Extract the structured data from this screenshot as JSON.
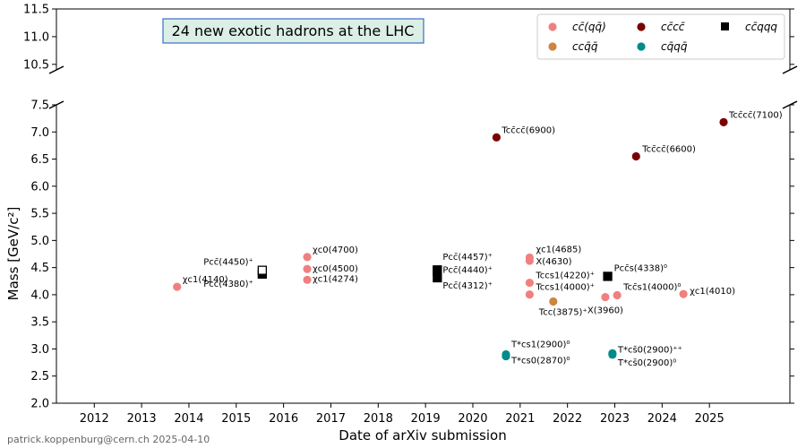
{
  "chart_data": {
    "type": "scatter",
    "title": "24 new exotic hadrons at the LHC",
    "xlabel": "Date of arXiv submission",
    "ylabel": "Mass [GeV/c²]",
    "footer": "patrick.koppenburg@cern.ch 2025-04-10",
    "xlim": [
      2011.2,
      2026.7
    ],
    "upper_ylim": [
      10.4,
      11.5
    ],
    "lower_ylim": [
      2.0,
      7.5
    ],
    "x_ticks": [
      2012,
      2013,
      2014,
      2015,
      2016,
      2017,
      2018,
      2019,
      2020,
      2021,
      2022,
      2023,
      2024,
      2025
    ],
    "upper_y_ticks": [
      "10.5",
      "11.0",
      "11.5"
    ],
    "lower_y_ticks": [
      "2.0",
      "2.5",
      "3.0",
      "3.5",
      "4.0",
      "4.5",
      "5.0",
      "5.5",
      "6.0",
      "6.5",
      "7.0",
      "7.5"
    ],
    "legend_position": "top-right",
    "series": [
      {
        "name": "cc̄(qq̄)",
        "color": "#f08080",
        "marker": "circle",
        "points": [
          {
            "x": 2013.75,
            "y": 4.146,
            "label": "χc1(4140)"
          },
          {
            "x": 2016.5,
            "y": 4.274,
            "label": "χc1(4274)"
          },
          {
            "x": 2016.5,
            "y": 4.474,
            "label": "χc0(4500)"
          },
          {
            "x": 2016.5,
            "y": 4.694,
            "label": "χc0(4700)"
          },
          {
            "x": 2021.2,
            "y": 4.684,
            "label": "χc1(4685)"
          },
          {
            "x": 2021.2,
            "y": 4.626,
            "label": "X(4630)"
          },
          {
            "x": 2021.2,
            "y": 4.22,
            "label": "Tccs1(4220)⁺"
          },
          {
            "x": 2021.2,
            "y": 4.003,
            "label": "Tccs1(4000)⁺"
          },
          {
            "x": 2022.8,
            "y": 3.956,
            "label": "X(3960)"
          },
          {
            "x": 2023.05,
            "y": 3.99,
            "label": "Tcc̄s1(4000)⁰"
          },
          {
            "x": 2024.45,
            "y": 4.012,
            "label": "χc1(4010)"
          }
        ]
      },
      {
        "name": "ccq̄q̄",
        "color": "#cd853f",
        "marker": "circle",
        "points": [
          {
            "x": 2021.7,
            "y": 3.875,
            "label": "Tcc(3875)⁺"
          }
        ]
      },
      {
        "name": "cc̄cc̄",
        "color": "#7b0000",
        "marker": "circle",
        "points": [
          {
            "x": 2020.5,
            "y": 6.9,
            "label": "Tcc̄cc̄(6900)"
          },
          {
            "x": 2023.45,
            "y": 6.55,
            "label": "Tcc̄cc̄(6600)"
          },
          {
            "x": 2025.3,
            "y": 7.18,
            "label": "Tcc̄cc̄(7100)"
          }
        ]
      },
      {
        "name": "cq̄qq̄",
        "color": "#008b8b",
        "marker": "circle",
        "points": [
          {
            "x": 2020.7,
            "y": 2.9,
            "label": "T*cs1(2900)⁰"
          },
          {
            "x": 2020.7,
            "y": 2.866,
            "label": "T*cs0(2870)⁰"
          },
          {
            "x": 2022.95,
            "y": 2.92,
            "label": "T*cs̄0(2900)⁺⁺"
          },
          {
            "x": 2022.95,
            "y": 2.895,
            "label": "T*cs̄0(2900)⁰"
          }
        ]
      },
      {
        "name": "cc̄qqq",
        "color": "#000000",
        "marker": "square",
        "points": [
          {
            "x": 2015.55,
            "y": 4.38,
            "label": "Pcc̄(4380)⁺",
            "open": false
          },
          {
            "x": 2015.55,
            "y": 4.45,
            "label": "Pcc̄(4450)⁺",
            "open": true
          },
          {
            "x": 2019.25,
            "y": 4.312,
            "label": "Pcc̄(4312)⁺",
            "open": false
          },
          {
            "x": 2019.25,
            "y": 4.44,
            "label": "Pcc̄(4440)⁺",
            "open": false
          },
          {
            "x": 2019.25,
            "y": 4.457,
            "label": "Pcc̄(4457)⁺",
            "open": false
          },
          {
            "x": 2022.85,
            "y": 4.338,
            "label": "Pcc̄s(4338)⁰",
            "open": false
          }
        ]
      }
    ]
  }
}
